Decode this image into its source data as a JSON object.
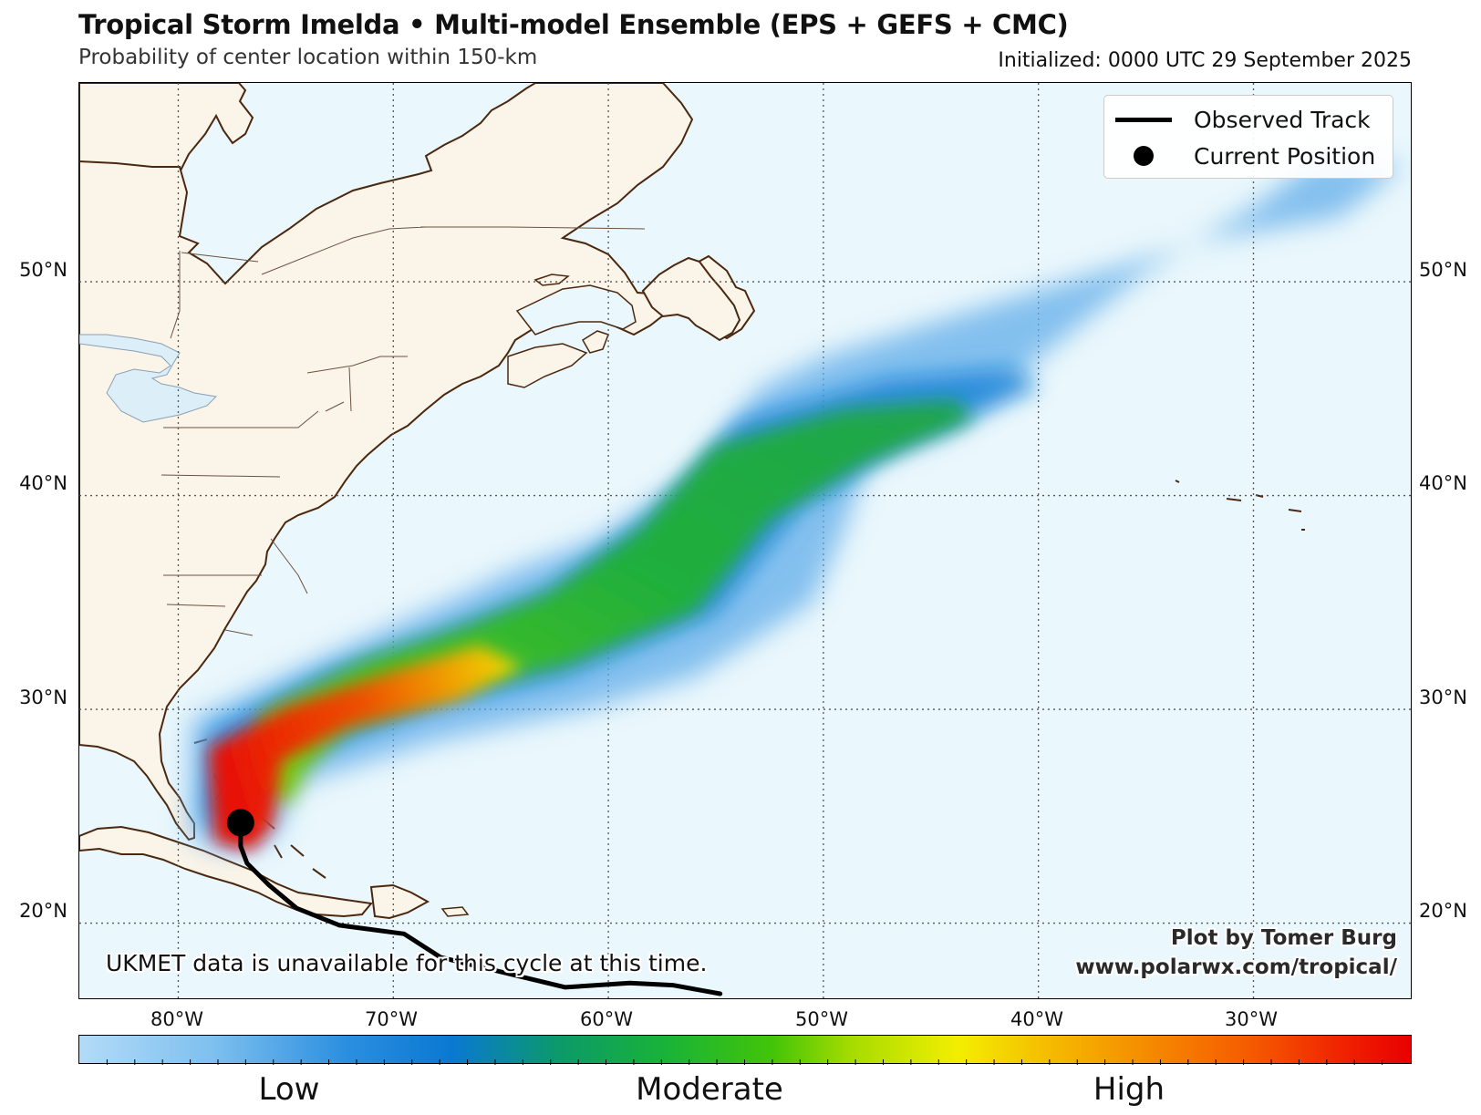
{
  "header": {
    "title": "Tropical Storm Imelda • Multi-model Ensemble (EPS + GEFS + CMC)",
    "subtitle": "Probability of center location within 150-km",
    "initialized": "Initialized: 0000 UTC 29 September 2025"
  },
  "map": {
    "lat_labels": [
      "50°N",
      "40°N",
      "30°N",
      "20°N"
    ],
    "lon_labels": [
      "80°W",
      "70°W",
      "60°W",
      "50°W",
      "40°W",
      "30°W"
    ],
    "extent": {
      "lon_min": -84.6,
      "lon_max": -22.6,
      "lat_min": 16.4,
      "lat_max": 59.3
    },
    "graticule": {
      "lats": [
        50,
        40,
        30,
        20
      ],
      "lons": [
        -80,
        -70,
        -60,
        -50,
        -40,
        -30
      ]
    },
    "colors": {
      "ocean": "#eaf7fc",
      "land": "#fbf4e8",
      "coastline": "#4a2810",
      "track": "#000000"
    },
    "observed_track": [
      [
        -54.8,
        16.7
      ],
      [
        -57,
        17.1
      ],
      [
        -59,
        17.2
      ],
      [
        -62,
        17.0
      ],
      [
        -67.8,
        18.4
      ],
      [
        -69.5,
        19.5
      ],
      [
        -72.5,
        19.9
      ],
      [
        -74.5,
        20.7
      ],
      [
        -75.8,
        21.8
      ],
      [
        -76.8,
        22.8
      ],
      [
        -77.1,
        23.6
      ],
      [
        -77.1,
        24.7
      ]
    ],
    "current_position": [
      -77.1,
      24.7
    ],
    "ensemble_probability": {
      "low_envelope": [
        [
          -79.5,
          24.0
        ],
        [
          -79.4,
          29.5
        ],
        [
          -72,
          33.0
        ],
        [
          -66.5,
          35.5
        ],
        [
          -64.5,
          36.5
        ],
        [
          -60.5,
          38.0
        ],
        [
          -56,
          41.0
        ],
        [
          -53,
          45.0
        ],
        [
          -50,
          46.5
        ],
        [
          -42,
          49.0
        ],
        [
          -32,
          52.0
        ],
        [
          -26,
          53.0
        ],
        [
          -23,
          55.5
        ],
        [
          -27,
          55.8
        ],
        [
          -30,
          53.5
        ],
        [
          -35,
          50.5
        ],
        [
          -40.5,
          46.0
        ],
        [
          -44,
          43.0
        ],
        [
          -48,
          41.5
        ],
        [
          -49,
          38.5
        ],
        [
          -50.5,
          35.0
        ],
        [
          -56,
          31.5
        ],
        [
          -61,
          30.0
        ],
        [
          -68,
          28.5
        ],
        [
          -74.5,
          26.5
        ],
        [
          -75.5,
          24.0
        ],
        [
          -77.5,
          23.3
        ]
      ],
      "moderate_envelope": [
        [
          -78.8,
          25.0
        ],
        [
          -78.5,
          29.0
        ],
        [
          -73,
          31.8
        ],
        [
          -68,
          33.5
        ],
        [
          -63,
          35.5
        ],
        [
          -58,
          39.0
        ],
        [
          -54,
          43.5
        ],
        [
          -47,
          45.5
        ],
        [
          -41,
          46.0
        ],
        [
          -40,
          45.0
        ],
        [
          -46,
          42.5
        ],
        [
          -51,
          39.5
        ],
        [
          -55,
          34.5
        ],
        [
          -62,
          31.6
        ],
        [
          -68,
          30.2
        ],
        [
          -74,
          28.0
        ],
        [
          -76,
          26.0
        ],
        [
          -77,
          24.0
        ]
      ],
      "high_envelope": [
        [
          -78.3,
          23.8
        ],
        [
          -78.6,
          28.2
        ],
        [
          -75,
          30.1
        ],
        [
          -70,
          31.8
        ],
        [
          -66,
          33.0
        ],
        [
          -64,
          32.0
        ],
        [
          -67,
          30.4
        ],
        [
          -72,
          29.2
        ],
        [
          -75.2,
          27.6
        ],
        [
          -75.6,
          24.6
        ],
        [
          -76.6,
          23.4
        ]
      ]
    }
  },
  "legend": {
    "observed_track": "Observed Track",
    "current_position": "Current Position"
  },
  "credit": {
    "line1": "Plot by Tomer Burg",
    "line2": "www.polarwx.com/tropical/"
  },
  "note": "UKMET data is unavailable for this cycle at this time.",
  "colorbar": {
    "labels": [
      "Low",
      "Moderate",
      "High"
    ],
    "colors": [
      "#b3dbf7",
      "#0a78d2",
      "#18b338",
      "#f3ee00",
      "#f58c00",
      "#e80000"
    ]
  }
}
